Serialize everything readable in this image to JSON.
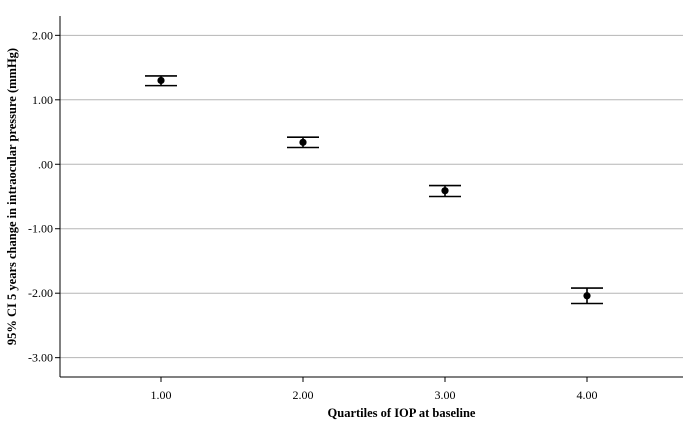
{
  "chart_data": {
    "type": "scatter",
    "subtype": "error-bar",
    "title": "",
    "xlabel": "Quartiles of IOP at baseline",
    "ylabel": "95% CI 5 years change in intraocular pressure (mmHg)",
    "categories": [
      "1.00",
      "2.00",
      "3.00",
      "4.00"
    ],
    "x": [
      1,
      2,
      3,
      4
    ],
    "series": [
      {
        "values": [
          1.3,
          0.34,
          -0.41,
          -2.04
        ],
        "ci_lower": [
          1.22,
          0.26,
          -0.5,
          -2.16
        ],
        "ci_upper": [
          1.37,
          0.42,
          -0.33,
          -1.92
        ]
      }
    ],
    "yticks": [
      2.0,
      1.0,
      0.0,
      -1.0,
      -2.0,
      -3.0
    ],
    "ytick_labels": [
      "2.00",
      "1.00",
      ".00",
      "-1.00",
      "-2.00",
      "-3.00"
    ],
    "ylim": [
      -3.3,
      2.3
    ],
    "grid": true,
    "legend": "none"
  }
}
